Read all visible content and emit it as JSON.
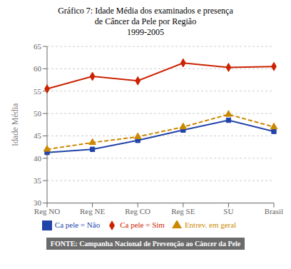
{
  "chart_data": {
    "type": "line",
    "title": "Gráfico 7: Idade Média dos examinados e presença\nde Câncer da Pele por Região",
    "subtitle": "1999-2005",
    "ylabel": "Idade Média",
    "categories": [
      "Reg NO",
      "Reg NE",
      "Reg CO",
      "Reg SE",
      "SU",
      "Brasil"
    ],
    "series": [
      {
        "name": "Ca pele = Sim",
        "color": "#cc2200",
        "marker": "diamond",
        "line_style": "solid",
        "values": [
          55.5,
          58.3,
          57.3,
          61.3,
          60.3,
          60.5
        ]
      },
      {
        "name": "Ca pele = Não",
        "color": "#2244aa",
        "marker": "square",
        "line_style": "solid",
        "values": [
          41.3,
          42.0,
          44.0,
          46.3,
          48.5,
          46.0
        ]
      },
      {
        "name": "Entrev. em geral",
        "color": "#cc8800",
        "marker": "triangle",
        "line_style": "dashed",
        "values": [
          42.0,
          43.5,
          44.8,
          47.0,
          49.8,
          47.0
        ]
      }
    ],
    "ylim": [
      30,
      65
    ],
    "yticks": [
      30,
      35,
      40,
      45,
      50,
      55,
      60,
      65
    ],
    "grid": true,
    "legend": "bottom",
    "annotations": [
      "FONTE: Campanha Nacional de Prevenção ao Câncer da Pele"
    ]
  }
}
